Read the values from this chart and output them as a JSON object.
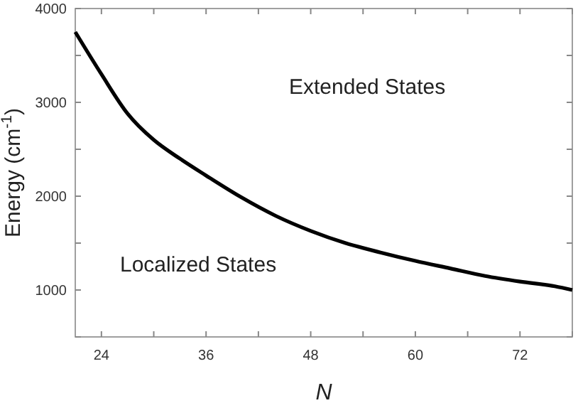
{
  "chart_data": {
    "type": "line",
    "xlabel": "N",
    "ylabel": "Energy (cm$^{-1}$)",
    "x": [
      21,
      24,
      27,
      30,
      33,
      36,
      40,
      44,
      48,
      52,
      56,
      60,
      64,
      68,
      72,
      76,
      78
    ],
    "series": [
      {
        "color": "#000000",
        "values": [
          3750,
          3300,
          2880,
          2600,
          2400,
          2220,
          1990,
          1790,
          1630,
          1500,
          1400,
          1310,
          1230,
          1150,
          1090,
          1040,
          1000
        ]
      }
    ],
    "xlim": [
      21,
      78
    ],
    "ylim": [
      500,
      4000
    ],
    "xticks": [
      24,
      {
        "value": 30,
        "label": null
      },
      36,
      {
        "value": 42,
        "label": null
      },
      48,
      {
        "value": 54,
        "label": null
      },
      60,
      {
        "value": 66,
        "label": null
      },
      72,
      {
        "value": 78,
        "label": null
      }
    ],
    "yticks": [
      {
        "value": 500,
        "label": null
      },
      1000,
      {
        "value": 1500,
        "label": null
      },
      2000,
      {
        "value": 2500,
        "label": null
      },
      3000,
      {
        "value": 3500,
        "label": null
      },
      4000
    ],
    "annotations": [
      "Extended States",
      "Localized States"
    ],
    "line_style": "solid",
    "marker": "none",
    "grid": false
  }
}
